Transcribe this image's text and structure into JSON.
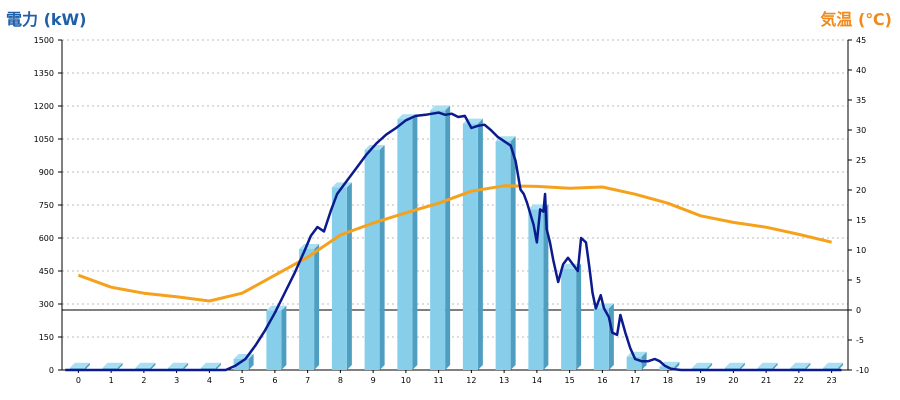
{
  "titles": {
    "left": "電力 (kW)",
    "right": "気温 (℃)"
  },
  "colors": {
    "bar_front": "#87ceeb",
    "bar_side": "#4f9ec0",
    "bar_top": "#a9dff2",
    "power_line": "#0b1a8c",
    "temp_line": "#f5a11c",
    "left_title": "#1f5fa8",
    "right_title": "#ef8b1c",
    "grid": "#bbbbbb"
  },
  "chart_data": {
    "type": "bar",
    "categories": [
      "0",
      "1",
      "2",
      "3",
      "4",
      "5",
      "6",
      "7",
      "8",
      "9",
      "10",
      "11",
      "12",
      "13",
      "14",
      "15",
      "16",
      "17",
      "18",
      "19",
      "20",
      "21",
      "22",
      "23"
    ],
    "grid": true,
    "yaxis_left": {
      "label": "電力 (kW)",
      "range": [
        0,
        1500
      ],
      "ticks": [
        0,
        150,
        300,
        450,
        600,
        750,
        900,
        1050,
        1200,
        1350,
        1500
      ]
    },
    "yaxis_right": {
      "label": "気温 (℃)",
      "range": [
        -10,
        45
      ],
      "ticks": [
        -10,
        -5,
        0,
        5,
        10,
        15,
        20,
        25,
        30,
        35,
        40,
        45
      ]
    },
    "zero_line_temp": 0,
    "series": [
      {
        "type": "bar",
        "axis": "left",
        "values": [
          10,
          10,
          10,
          10,
          10,
          50,
          270,
          550,
          830,
          1000,
          1140,
          1180,
          1120,
          1040,
          730,
          460,
          280,
          60,
          15,
          10,
          10,
          10,
          10,
          10
        ]
      },
      {
        "type": "line",
        "axis": "left",
        "points": [
          [
            -0.4,
            0
          ],
          [
            4.5,
            0
          ],
          [
            4.8,
            20
          ],
          [
            5.1,
            50
          ],
          [
            5.4,
            110
          ],
          [
            5.7,
            180
          ],
          [
            6.0,
            260
          ],
          [
            6.3,
            350
          ],
          [
            6.6,
            440
          ],
          [
            6.9,
            540
          ],
          [
            7.1,
            610
          ],
          [
            7.3,
            650
          ],
          [
            7.5,
            630
          ],
          [
            7.7,
            720
          ],
          [
            7.9,
            800
          ],
          [
            8.2,
            860
          ],
          [
            8.5,
            920
          ],
          [
            8.8,
            980
          ],
          [
            9.1,
            1030
          ],
          [
            9.4,
            1070
          ],
          [
            9.7,
            1100
          ],
          [
            10.0,
            1135
          ],
          [
            10.3,
            1155
          ],
          [
            10.6,
            1160
          ],
          [
            10.8,
            1165
          ],
          [
            11.0,
            1170
          ],
          [
            11.2,
            1160
          ],
          [
            11.4,
            1165
          ],
          [
            11.6,
            1150
          ],
          [
            11.8,
            1155
          ],
          [
            12.0,
            1100
          ],
          [
            12.2,
            1110
          ],
          [
            12.4,
            1115
          ],
          [
            12.6,
            1090
          ],
          [
            12.8,
            1060
          ],
          [
            13.0,
            1040
          ],
          [
            13.2,
            1020
          ],
          [
            13.35,
            950
          ],
          [
            13.5,
            820
          ],
          [
            13.6,
            800
          ],
          [
            13.7,
            760
          ],
          [
            13.8,
            710
          ],
          [
            13.9,
            660
          ],
          [
            14.0,
            580
          ],
          [
            14.1,
            730
          ],
          [
            14.2,
            720
          ],
          [
            14.25,
            800
          ],
          [
            14.3,
            640
          ],
          [
            14.4,
            580
          ],
          [
            14.5,
            500
          ],
          [
            14.65,
            400
          ],
          [
            14.8,
            480
          ],
          [
            14.95,
            510
          ],
          [
            15.1,
            480
          ],
          [
            15.25,
            450
          ],
          [
            15.35,
            600
          ],
          [
            15.5,
            580
          ],
          [
            15.6,
            470
          ],
          [
            15.7,
            350
          ],
          [
            15.8,
            280
          ],
          [
            15.95,
            340
          ],
          [
            16.05,
            280
          ],
          [
            16.2,
            240
          ],
          [
            16.3,
            170
          ],
          [
            16.45,
            160
          ],
          [
            16.55,
            250
          ],
          [
            16.7,
            170
          ],
          [
            16.85,
            100
          ],
          [
            17.0,
            50
          ],
          [
            17.2,
            40
          ],
          [
            17.4,
            40
          ],
          [
            17.6,
            50
          ],
          [
            17.75,
            40
          ],
          [
            17.9,
            20
          ],
          [
            18.1,
            5
          ],
          [
            18.4,
            0
          ],
          [
            23.3,
            0
          ]
        ]
      },
      {
        "type": "line",
        "axis": "right",
        "points": [
          [
            0,
            5.8
          ],
          [
            1,
            3.8
          ],
          [
            2,
            2.8
          ],
          [
            3,
            2.2
          ],
          [
            4,
            1.5
          ],
          [
            5,
            2.8
          ],
          [
            6,
            5.8
          ],
          [
            7,
            8.8
          ],
          [
            8,
            12.5
          ],
          [
            9,
            14.5
          ],
          [
            10,
            16.2
          ],
          [
            11,
            17.8
          ],
          [
            12,
            19.8
          ],
          [
            13,
            20.7
          ],
          [
            14,
            20.6
          ],
          [
            15,
            20.3
          ],
          [
            16,
            20.5
          ],
          [
            17,
            19.3
          ],
          [
            18,
            17.8
          ],
          [
            19,
            15.7
          ],
          [
            20,
            14.6
          ],
          [
            21,
            13.8
          ],
          [
            22,
            12.6
          ],
          [
            23,
            11.3
          ]
        ]
      }
    ]
  }
}
